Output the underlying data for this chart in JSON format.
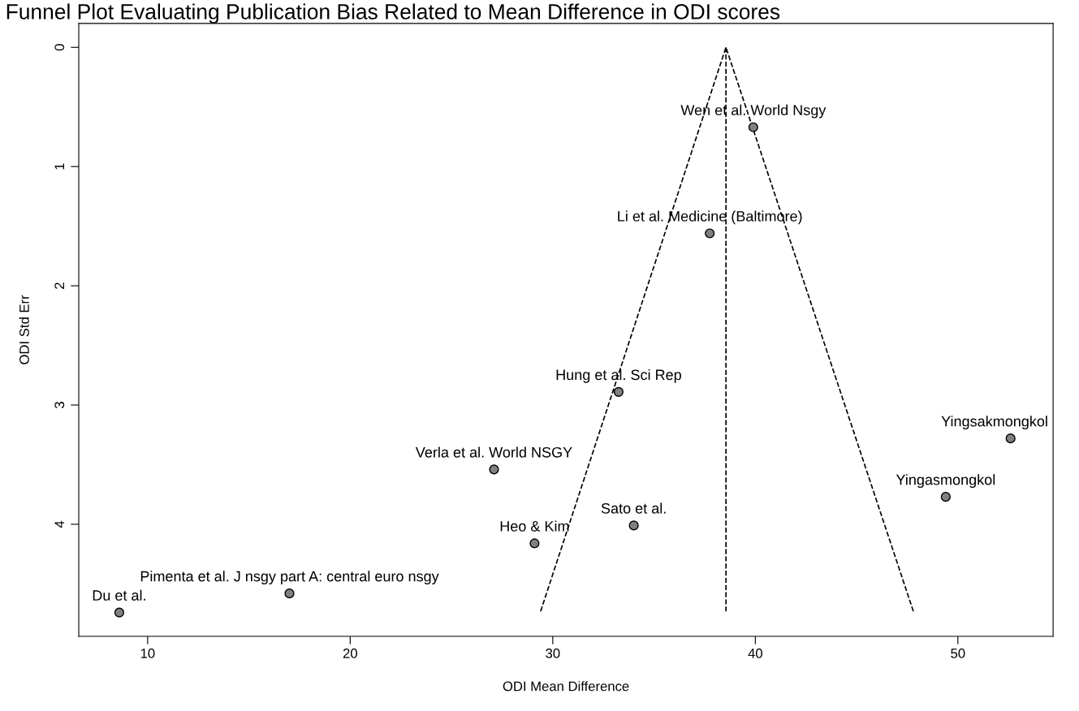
{
  "chart_data": {
    "type": "scatter",
    "title": "Funnel Plot Evaluating Publication Bias Related to Mean Difference in ODI scores",
    "xlabel": "ODI Mean Difference",
    "ylabel": "ODI Std Err",
    "xlim": [
      6.6,
      54.7
    ],
    "ylim": [
      4.94,
      -0.2
    ],
    "xticks": [
      10,
      20,
      30,
      40,
      50
    ],
    "yticks": [
      0,
      1,
      2,
      3,
      4
    ],
    "grid": false,
    "legend": false,
    "series": [
      {
        "color": "#808080",
        "marker": "circle",
        "x": [
          39.9,
          37.75,
          33.25,
          27.1,
          29.1,
          34.0,
          17.0,
          8.6,
          52.6,
          49.4
        ],
        "values": [
          0.67,
          1.56,
          2.89,
          3.54,
          4.16,
          4.01,
          4.58,
          4.74,
          3.28,
          3.77
        ]
      },
      {
        "type": "line",
        "color": "#000000",
        "marker": "none",
        "line_style": "dashed",
        "x": [
          29.4,
          38.55,
          47.8
        ],
        "values": [
          4.73,
          0,
          4.73
        ]
      },
      {
        "type": "line",
        "color": "#000000",
        "marker": "none",
        "line_style": "dashed",
        "x": [
          38.55,
          38.55
        ],
        "values": [
          0,
          4.73
        ]
      }
    ],
    "annotations": [
      {
        "text": "Wen et al. World Nsgy",
        "x": 39.9,
        "y": 0.67
      },
      {
        "text": "Li et al. Medicine (Baltimore)",
        "x": 37.75,
        "y": 1.56
      },
      {
        "text": "Hung et al. Sci Rep",
        "x": 33.25,
        "y": 2.89
      },
      {
        "text": "Verla et al. World NSGY",
        "x": 27.1,
        "y": 3.54
      },
      {
        "text": "Heo & Kim",
        "x": 29.1,
        "y": 4.16
      },
      {
        "text": "Sato et al.",
        "x": 34.0,
        "y": 4.01
      },
      {
        "text": "Pimenta et al. J nsgy part A: central euro nsgy",
        "x": 17.0,
        "y": 4.58
      },
      {
        "text": "Du et al.",
        "x": 8.6,
        "y": 4.74
      },
      {
        "text": "Yingsakmongkol",
        "x": 52.6,
        "y": 3.28
      },
      {
        "text": "Yingasmongkol",
        "x": 49.4,
        "y": 3.77
      }
    ]
  }
}
